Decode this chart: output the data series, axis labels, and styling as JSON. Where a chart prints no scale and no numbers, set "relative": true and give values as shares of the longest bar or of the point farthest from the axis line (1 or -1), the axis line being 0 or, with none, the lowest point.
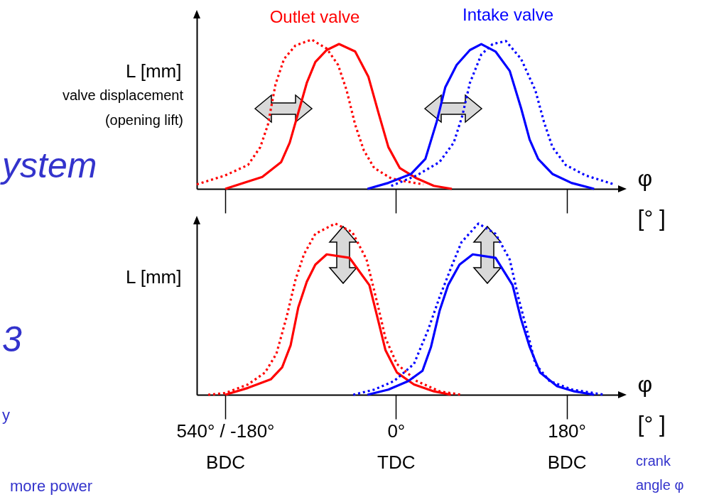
{
  "chart_data": [
    {
      "type": "line",
      "relative": true,
      "xlim": [
        -210,
        238
      ],
      "xticks": [
        -180,
        0,
        180
      ],
      "tick_labels": false,
      "ylabel": "L [mm]",
      "xlabel": "φ [° ]",
      "annotations": [
        "valve displacement",
        "(opening lift)",
        "ystem",
        "3",
        "y",
        "more power"
      ],
      "series": [
        {
          "name": "Outlet valve",
          "color": "#ff0000",
          "line_style": "solid",
          "x": [
            -180,
            -141,
            -121,
            -112,
            -94,
            -85,
            -73,
            -60,
            -43,
            -29,
            -18,
            -8,
            4,
            22,
            40,
            59
          ],
          "values": [
            0,
            0.08,
            0.18,
            0.31,
            0.71,
            0.85,
            0.93,
            0.97,
            0.92,
            0.75,
            0.5,
            0.28,
            0.14,
            0.07,
            0.02,
            0
          ]
        },
        {
          "color": "#ff0000",
          "line_style": "dotted",
          "x": [
            -210,
            -180,
            -156,
            -143,
            -135,
            -127,
            -118,
            -106,
            -89,
            -73,
            -61,
            -52,
            -43,
            -34,
            -23,
            -5,
            10,
            29
          ],
          "values": [
            0.03,
            0.09,
            0.16,
            0.28,
            0.43,
            0.7,
            0.87,
            0.96,
            1,
            0.94,
            0.83,
            0.66,
            0.43,
            0.26,
            0.14,
            0.07,
            0.05,
            0.03
          ]
        },
        {
          "name": "Intake valve",
          "color": "#0000ff",
          "line_style": "solid",
          "x": [
            -30,
            -8,
            16,
            31,
            43,
            52,
            64,
            78,
            90,
            105,
            120,
            132,
            141,
            150,
            165,
            185,
            209
          ],
          "values": [
            0,
            0.04,
            0.1,
            0.2,
            0.45,
            0.68,
            0.83,
            0.93,
            0.97,
            0.92,
            0.79,
            0.54,
            0.33,
            0.2,
            0.1,
            0.04,
            0
          ]
        },
        {
          "color": "#0000ff",
          "line_style": "dotted",
          "x": [
            -5,
            22,
            46,
            61,
            70,
            78,
            90,
            102,
            116,
            132,
            147,
            156,
            165,
            179,
            200,
            230
          ],
          "values": [
            0.02,
            0.09,
            0.18,
            0.31,
            0.49,
            0.71,
            0.9,
            0.97,
            0.99,
            0.87,
            0.66,
            0.45,
            0.28,
            0.16,
            0.09,
            0.03
          ]
        }
      ]
    },
    {
      "type": "line",
      "relative": true,
      "xlim": [
        -210,
        238
      ],
      "xticks": [
        {
          "value": -180,
          "label": "540° / -180°\nBDC"
        },
        {
          "value": 0,
          "label": "0°\nTDC"
        },
        {
          "value": 180,
          "label": "180°\nBDC"
        }
      ],
      "tick_labels": "x",
      "ylabel": "L [mm]",
      "xlabel": "φ [° ]",
      "annotations": [
        "crank angle φ"
      ],
      "series": [
        {
          "color": "#ff0000",
          "line_style": "solid",
          "x": [
            -180,
            -156,
            -132,
            -120,
            -111,
            -103,
            -94,
            -85,
            -73,
            -49,
            -28,
            -19,
            -11,
            1,
            19,
            40,
            58
          ],
          "values": [
            0,
            0.04,
            0.09,
            0.16,
            0.29,
            0.51,
            0.66,
            0.76,
            0.82,
            0.8,
            0.64,
            0.44,
            0.26,
            0.13,
            0.06,
            0.02,
            0
          ]
        },
        {
          "color": "#ff0000",
          "line_style": "dotted",
          "x": [
            -198,
            -180,
            -156,
            -138,
            -126,
            -115,
            -106,
            -97,
            -85,
            -64,
            -46,
            -31,
            -19,
            -11,
            1,
            22,
            46,
            69
          ],
          "values": [
            0,
            0.01,
            0.06,
            0.13,
            0.24,
            0.46,
            0.67,
            0.82,
            0.94,
            1,
            0.95,
            0.79,
            0.52,
            0.33,
            0.18,
            0.08,
            0.02,
            0
          ]
        },
        {
          "color": "#0000ff",
          "line_style": "solid",
          "x": [
            -30,
            -8,
            13,
            28,
            37,
            46,
            55,
            67,
            81,
            105,
            123,
            132,
            141,
            152,
            170,
            188,
            209
          ],
          "values": [
            0,
            0.03,
            0.08,
            0.14,
            0.28,
            0.49,
            0.64,
            0.76,
            0.82,
            0.8,
            0.64,
            0.44,
            0.28,
            0.13,
            0.05,
            0.02,
            0
          ]
        },
        {
          "color": "#0000ff",
          "line_style": "dotted",
          "x": [
            -45,
            -23,
            -2,
            19,
            34,
            46,
            58,
            69,
            87,
            105,
            120,
            129,
            138,
            147,
            162,
            186,
            220
          ],
          "values": [
            0,
            0.03,
            0.08,
            0.18,
            0.38,
            0.57,
            0.74,
            0.89,
            1,
            0.94,
            0.79,
            0.57,
            0.38,
            0.18,
            0.08,
            0.03,
            0
          ]
        }
      ]
    }
  ]
}
